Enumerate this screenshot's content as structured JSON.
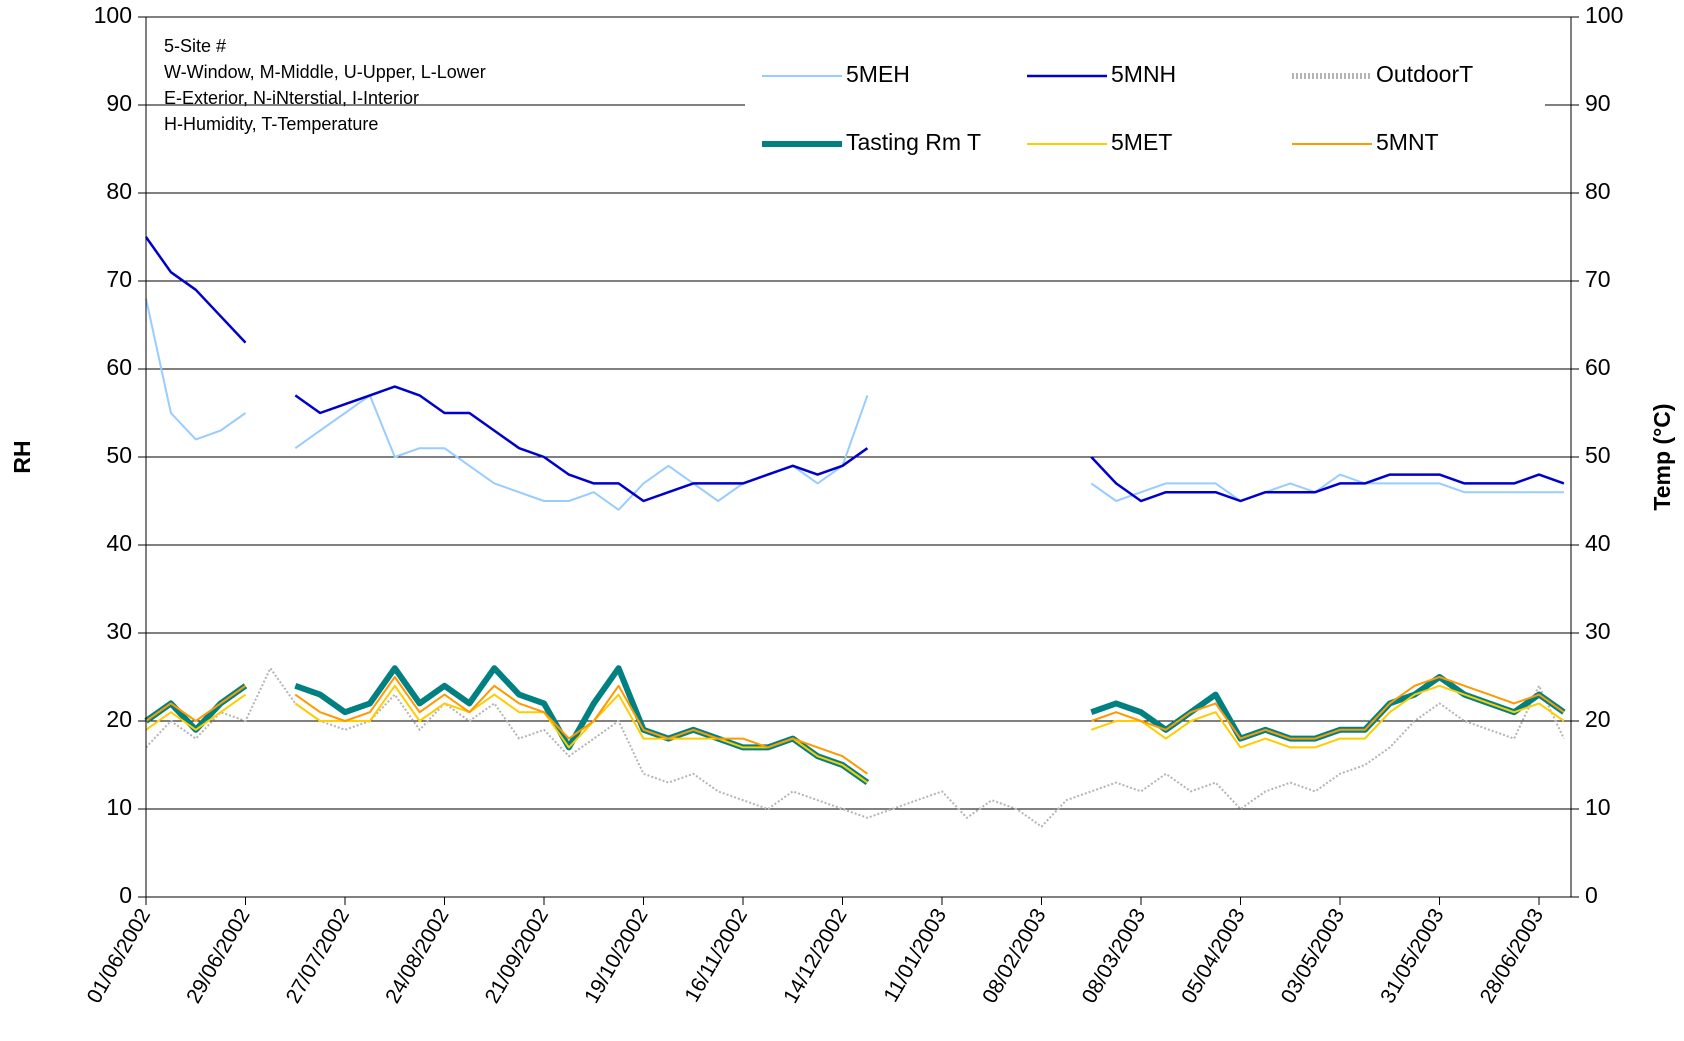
{
  "chart_data": {
    "type": "line",
    "y_label": "RH",
    "y2_label": "Temp (°C)",
    "notes": [
      "5-Site #",
      "W-Window, M-Middle, U-Upper, L-Lower",
      "E-Exterior, N-iNterstial, I-Interior",
      "H-Humidity, T-Temperature"
    ],
    "legend": "top",
    "grid": true,
    "xlim": [
      "2002-06-01",
      "2003-07-07"
    ],
    "xticks": [
      {
        "value": "2002-06-01",
        "label": "01/06/2002"
      },
      {
        "value": "2002-06-29",
        "label": "29/06/2002"
      },
      {
        "value": "2002-07-27",
        "label": "27/07/2002"
      },
      {
        "value": "2002-08-24",
        "label": "24/08/2002"
      },
      {
        "value": "2002-09-21",
        "label": "21/09/2002"
      },
      {
        "value": "2002-10-19",
        "label": "19/10/2002"
      },
      {
        "value": "2002-11-16",
        "label": "16/11/2002"
      },
      {
        "value": "2002-12-14",
        "label": "14/12/2002"
      },
      {
        "value": "2003-01-11",
        "label": "11/01/2003"
      },
      {
        "value": "2003-02-08",
        "label": "08/02/2003"
      },
      {
        "value": "2003-03-08",
        "label": "08/03/2003"
      },
      {
        "value": "2003-04-05",
        "label": "05/04/2003"
      },
      {
        "value": "2003-05-03",
        "label": "03/05/2003"
      },
      {
        "value": "2003-05-31",
        "label": "31/05/2003"
      },
      {
        "value": "2003-06-28",
        "label": "28/06/2003"
      }
    ],
    "ylim": [
      0,
      100
    ],
    "yticks": [
      0,
      10,
      20,
      30,
      40,
      50,
      60,
      70,
      80,
      90,
      100
    ],
    "y2lim": [
      0,
      100
    ],
    "y2ticks": [
      0,
      10,
      20,
      30,
      40,
      50,
      60,
      70,
      80,
      90,
      100
    ],
    "x": [
      "2002-06-01",
      "2002-06-08",
      "2002-06-15",
      "2002-06-22",
      "2002-06-29",
      "2002-07-06",
      "2002-07-13",
      "2002-07-20",
      "2002-07-27",
      "2002-08-03",
      "2002-08-10",
      "2002-08-17",
      "2002-08-24",
      "2002-08-31",
      "2002-09-07",
      "2002-09-14",
      "2002-09-21",
      "2002-09-28",
      "2002-10-05",
      "2002-10-12",
      "2002-10-19",
      "2002-10-26",
      "2002-11-02",
      "2002-11-09",
      "2002-11-16",
      "2002-11-23",
      "2002-11-30",
      "2002-12-07",
      "2002-12-14",
      "2002-12-21",
      "2002-12-28",
      "2003-01-04",
      "2003-01-11",
      "2003-01-18",
      "2003-01-25",
      "2003-02-01",
      "2003-02-08",
      "2003-02-15",
      "2003-02-22",
      "2003-03-01",
      "2003-03-08",
      "2003-03-15",
      "2003-03-22",
      "2003-03-29",
      "2003-04-05",
      "2003-04-12",
      "2003-04-19",
      "2003-04-26",
      "2003-05-03",
      "2003-05-10",
      "2003-05-17",
      "2003-05-24",
      "2003-05-31",
      "2003-06-07",
      "2003-06-14",
      "2003-06-21",
      "2003-06-28",
      "2003-07-05"
    ],
    "series": [
      {
        "name": "5MEH",
        "color": "#99ccff",
        "width": 2,
        "values": [
          68,
          55,
          52,
          53,
          55,
          null,
          51,
          53,
          55,
          57,
          50,
          51,
          51,
          49,
          47,
          46,
          45,
          45,
          46,
          44,
          47,
          49,
          47,
          45,
          47,
          48,
          49,
          47,
          49,
          57,
          null,
          null,
          null,
          null,
          null,
          null,
          null,
          null,
          47,
          45,
          46,
          47,
          47,
          47,
          45,
          46,
          47,
          46,
          48,
          47,
          47,
          47,
          47,
          46,
          46,
          46,
          46,
          46
        ]
      },
      {
        "name": "5MNH",
        "color": "#0000cc",
        "width": 2.5,
        "values": [
          75,
          71,
          69,
          66,
          63,
          null,
          57,
          55,
          56,
          57,
          58,
          57,
          55,
          55,
          53,
          51,
          50,
          48,
          47,
          47,
          45,
          46,
          47,
          47,
          47,
          48,
          49,
          48,
          49,
          51,
          null,
          null,
          null,
          null,
          null,
          null,
          null,
          null,
          50,
          47,
          45,
          46,
          46,
          46,
          45,
          46,
          46,
          46,
          47,
          47,
          48,
          48,
          48,
          47,
          47,
          47,
          48,
          47
        ]
      },
      {
        "name": "OutdoorT",
        "color": "#b4b4b4",
        "width": 2,
        "line_style": "dotted",
        "axis": "y2",
        "values": [
          17,
          20,
          18,
          21,
          20,
          26,
          22,
          20,
          19,
          20,
          23,
          19,
          22,
          20,
          22,
          18,
          19,
          16,
          18,
          20,
          14,
          13,
          14,
          12,
          11,
          10,
          12,
          11,
          10,
          9,
          10,
          11,
          12,
          9,
          11,
          10,
          8,
          11,
          12,
          13,
          12,
          14,
          12,
          13,
          10,
          12,
          13,
          12,
          14,
          15,
          17,
          20,
          22,
          20,
          19,
          18,
          24,
          18
        ]
      },
      {
        "name": "Tasting Rm T",
        "color": "#008080",
        "width": 6,
        "axis": "y2",
        "values": [
          20,
          22,
          19,
          22,
          24,
          null,
          24,
          23,
          21,
          22,
          26,
          22,
          24,
          22,
          26,
          23,
          22,
          17,
          22,
          26,
          19,
          18,
          19,
          18,
          17,
          17,
          18,
          16,
          15,
          13,
          null,
          null,
          null,
          null,
          null,
          null,
          null,
          null,
          21,
          22,
          21,
          19,
          21,
          23,
          18,
          19,
          18,
          18,
          19,
          19,
          22,
          23,
          25,
          23,
          22,
          21,
          23,
          21
        ]
      },
      {
        "name": "5MET",
        "color": "#ffcc00",
        "width": 2,
        "axis": "y2",
        "values": [
          19,
          21,
          19,
          21,
          23,
          null,
          22,
          20,
          20,
          20,
          24,
          20,
          22,
          21,
          23,
          21,
          21,
          17,
          20,
          23,
          18,
          18,
          18,
          18,
          17,
          17,
          18,
          16,
          15,
          13,
          null,
          null,
          null,
          null,
          null,
          null,
          null,
          null,
          19,
          20,
          20,
          18,
          20,
          21,
          17,
          18,
          17,
          17,
          18,
          18,
          21,
          23,
          24,
          23,
          22,
          21,
          22,
          20
        ]
      },
      {
        "name": "5MNT",
        "color": "#ff9900",
        "width": 2,
        "axis": "y2",
        "values": [
          20,
          22,
          20,
          22,
          24,
          null,
          23,
          21,
          20,
          21,
          25,
          21,
          23,
          21,
          24,
          22,
          21,
          18,
          20,
          24,
          19,
          18,
          19,
          18,
          18,
          17,
          18,
          17,
          16,
          14,
          null,
          null,
          null,
          null,
          null,
          null,
          null,
          null,
          20,
          21,
          20,
          19,
          21,
          22,
          18,
          19,
          18,
          18,
          19,
          19,
          22,
          24,
          25,
          24,
          23,
          22,
          23,
          21
        ]
      }
    ]
  }
}
